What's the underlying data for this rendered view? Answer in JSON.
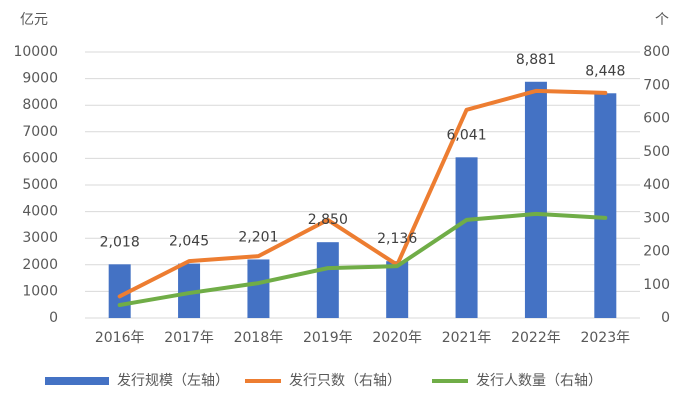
{
  "chart_data": {
    "type": "bar",
    "ylabel": "亿元",
    "y2label": "个",
    "categories": [
      "2016年",
      "2017年",
      "2018年",
      "2019年",
      "2020年",
      "2021年",
      "2022年",
      "2023年"
    ],
    "series": [
      {
        "name": "发行规模（左轴）",
        "type": "bar",
        "color": "#4472c4",
        "axis": "y",
        "values": [
          2018,
          2045,
          2201,
          2850,
          2136,
          6041,
          8881,
          8448
        ],
        "value_labels": [
          "2,018",
          "2,045",
          "2,201",
          "2,850",
          "2,136",
          "6,041",
          "8,881",
          "8,448"
        ]
      },
      {
        "name": "发行只数（右轴）",
        "type": "line",
        "color": "#ed7d31",
        "axis": "y2",
        "values": [
          65,
          171,
          186,
          295,
          160,
          626,
          683,
          677
        ]
      },
      {
        "name": "发行人数量（右轴）",
        "type": "line",
        "color": "#70ad47",
        "axis": "y2",
        "values": [
          39,
          75,
          105,
          150,
          156,
          295,
          313,
          301
        ]
      }
    ],
    "ylim": [
      0,
      10000
    ],
    "yticks": [
      0,
      1000,
      2000,
      3000,
      4000,
      5000,
      6000,
      7000,
      8000,
      9000,
      10000
    ],
    "y2lim": [
      0,
      800
    ],
    "y2ticks": [
      0,
      100,
      200,
      300,
      400,
      500,
      600,
      700,
      800
    ],
    "grid": true,
    "legend": "bottom"
  }
}
